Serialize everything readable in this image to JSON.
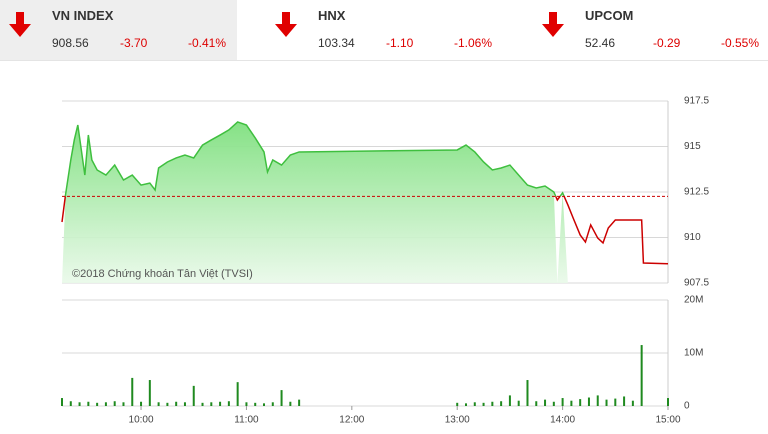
{
  "indices": [
    {
      "name": "VN INDEX",
      "value": "908.56",
      "change": "-3.70",
      "change_pct": "-0.41%"
    },
    {
      "name": "HNX",
      "value": "103.34",
      "change": "-1.10",
      "change_pct": "-1.06%"
    },
    {
      "name": "UPCOM",
      "value": "52.46",
      "change": "-0.29",
      "change_pct": "-0.55%"
    }
  ],
  "chart_data": [
    {
      "type": "line",
      "annotation": "©2018 Chứng khoán Tân Việt (TVSI)",
      "x": [
        "09:15",
        "09:17",
        "09:20",
        "09:22",
        "09:24",
        "09:26",
        "09:28",
        "09:30",
        "09:32",
        "09:35",
        "09:40",
        "09:45",
        "09:50",
        "09:55",
        "10:00",
        "10:05",
        "10:08",
        "10:10",
        "10:15",
        "10:20",
        "10:25",
        "10:30",
        "10:35",
        "10:40",
        "10:45",
        "10:50",
        "10:55",
        "11:00",
        "11:05",
        "11:10",
        "11:12",
        "11:15",
        "11:20",
        "11:25",
        "11:30",
        "13:00",
        "13:05",
        "13:10",
        "13:15",
        "13:20",
        "13:25",
        "13:30",
        "13:35",
        "13:40",
        "13:45",
        "13:50",
        "13:55",
        "13:57",
        "14:00",
        "14:03",
        "14:06",
        "14:10",
        "14:13",
        "14:16",
        "14:20",
        "14:23",
        "14:26",
        "14:30",
        "14:38",
        "14:45",
        "14:46",
        "15:00"
      ],
      "values": [
        910.85,
        912.34,
        914.26,
        915.36,
        916.18,
        914.81,
        913.43,
        915.63,
        914.26,
        913.71,
        913.43,
        913.98,
        913.16,
        913.43,
        912.88,
        912.99,
        912.61,
        913.82,
        914.15,
        914.37,
        914.53,
        914.37,
        915.08,
        915.36,
        915.63,
        915.91,
        916.35,
        916.18,
        915.47,
        914.7,
        913.6,
        914.26,
        913.98,
        914.53,
        914.7,
        914.81,
        915.08,
        914.7,
        914.15,
        913.71,
        913.82,
        913.98,
        913.43,
        912.88,
        912.72,
        912.83,
        912.5,
        912.06,
        912.45,
        911.79,
        911.07,
        910.14,
        909.75,
        910.69,
        909.97,
        909.7,
        910.52,
        910.96,
        910.96,
        910.96,
        908.6,
        908.56
      ],
      "reference_line": 912.26,
      "xlim": [
        "09:15",
        "15:00"
      ],
      "ylim": [
        907.5,
        917.5
      ],
      "yticks": [
        907.5,
        910,
        912.5,
        915,
        917.5
      ],
      "grid": true,
      "color_up": "#3fbf3f",
      "color_down": "#cc0000",
      "fill_color": "#7fe07f"
    },
    {
      "type": "bar",
      "x": [
        "09:15",
        "09:20",
        "09:25",
        "09:30",
        "09:35",
        "09:40",
        "09:45",
        "09:50",
        "09:55",
        "10:00",
        "10:05",
        "10:10",
        "10:15",
        "10:20",
        "10:25",
        "10:30",
        "10:35",
        "10:40",
        "10:45",
        "10:50",
        "10:55",
        "11:00",
        "11:05",
        "11:10",
        "11:15",
        "11:20",
        "11:25",
        "11:30",
        "13:00",
        "13:05",
        "13:10",
        "13:15",
        "13:20",
        "13:25",
        "13:30",
        "13:35",
        "13:40",
        "13:45",
        "13:50",
        "13:55",
        "14:00",
        "14:05",
        "14:10",
        "14:15",
        "14:20",
        "14:25",
        "14:30",
        "14:35",
        "14:40",
        "14:45",
        "15:00"
      ],
      "values": [
        1500000,
        900000,
        700000,
        800000,
        600000,
        700000,
        900000,
        700000,
        5300000,
        800000,
        4900000,
        700000,
        600000,
        800000,
        700000,
        3800000,
        600000,
        700000,
        800000,
        900000,
        4500000,
        700000,
        600000,
        500000,
        700000,
        3000000,
        800000,
        1200000,
        600000,
        500000,
        700000,
        600000,
        800000,
        900000,
        2000000,
        1000000,
        4900000,
        900000,
        1200000,
        800000,
        1500000,
        1000000,
        1300000,
        1600000,
        2000000,
        1200000,
        1400000,
        1800000,
        1000000,
        11500000,
        1500000
      ],
      "color": "#1f8a1f",
      "xlim": [
        "09:15",
        "15:00"
      ],
      "xticks": [
        "10:00",
        "11:00",
        "12:00",
        "13:00",
        "14:00",
        "15:00"
      ],
      "ylim": [
        0,
        20000000
      ],
      "yticks": [
        {
          "value": 0,
          "label": "0"
        },
        {
          "value": 10000000,
          "label": "10M"
        },
        {
          "value": 20000000,
          "label": "20M"
        }
      ],
      "grid": true
    }
  ]
}
